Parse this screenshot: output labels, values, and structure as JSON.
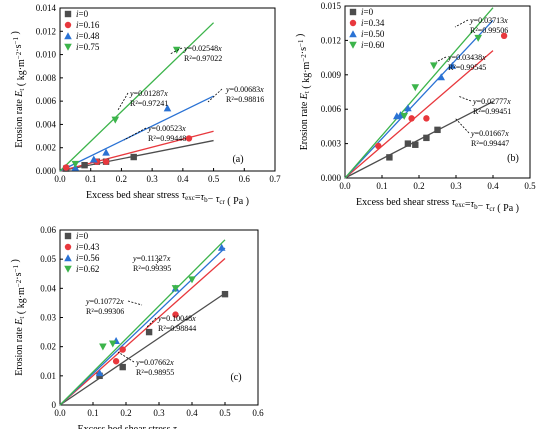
{
  "colors": {
    "series": [
      "#4d4d4d",
      "#e8383d",
      "#2a72d4",
      "#3cb44b"
    ],
    "axis": "#000000",
    "background": "#ffffff"
  },
  "chart_data": [
    {
      "type": "scatter",
      "panel_label": "(a)",
      "xlabel": "Excess bed shear stress τexc=τb−τcr ( Pa )",
      "ylabel": "Erosion rate Et ( kg·m−2·s−1 )",
      "xlim": [
        0,
        0.7
      ],
      "ylim": [
        0,
        0.014
      ],
      "xticks": [
        "0.0",
        "0.1",
        "0.2",
        "0.3",
        "0.4",
        "0.5",
        "0.6",
        "0.7"
      ],
      "yticks": [
        "0.000",
        "0.002",
        "0.004",
        "0.006",
        "0.008",
        "0.010",
        "0.012",
        "0.014"
      ],
      "legend_position": "top-left",
      "grid": false,
      "series": [
        {
          "name": "i=0",
          "marker": "square",
          "points": [
            [
              0.02,
              0.0002
            ],
            [
              0.08,
              0.0005
            ],
            [
              0.12,
              0.0008
            ],
            [
              0.15,
              0.0008
            ],
            [
              0.24,
              0.0012
            ]
          ],
          "fit_slope": 0.00523,
          "fit_xmax": 0.5,
          "equation": "y=0.00523x",
          "r2": "R²=0.99448"
        },
        {
          "name": "i=0.16",
          "marker": "circle",
          "points": [
            [
              0.02,
              0.0003
            ],
            [
              0.12,
              0.0008
            ],
            [
              0.15,
              0.0008
            ],
            [
              0.42,
              0.0028
            ]
          ],
          "fit_slope": 0.00683,
          "fit_xmax": 0.5,
          "equation": "y=0.00683x",
          "r2": "R²=0.98816"
        },
        {
          "name": "i=0.48",
          "marker": "triangle-up",
          "points": [
            [
              0.05,
              0.0003
            ],
            [
              0.11,
              0.001
            ],
            [
              0.15,
              0.0016
            ],
            [
              0.35,
              0.0054
            ]
          ],
          "fit_slope": 0.01287,
          "fit_xmax": 0.5,
          "equation": "y=0.01287x",
          "r2": "R²=0.97241"
        },
        {
          "name": "i=0.75",
          "marker": "triangle-down",
          "points": [
            [
              0.05,
              0.0006
            ],
            [
              0.18,
              0.0044
            ],
            [
              0.38,
              0.0104
            ]
          ],
          "fit_slope": 0.02548,
          "fit_xmax": 0.5,
          "equation": "y=0.02548x",
          "r2": "R²=0.97022"
        }
      ]
    },
    {
      "type": "scatter",
      "panel_label": "(b)",
      "xlabel": "Excess bed shear stress τexc=τb−τcr ( Pa )",
      "ylabel": "Erosion rate Et ( kg·m−2·s−1 )",
      "xlim": [
        0,
        0.5
      ],
      "ylim": [
        0,
        0.015
      ],
      "xticks": [
        "0.0",
        "0.1",
        "0.2",
        "0.3",
        "0.4",
        "0.5"
      ],
      "yticks": [
        "0.000",
        "0.003",
        "0.006",
        "0.009",
        "0.012",
        "0.015"
      ],
      "legend_position": "top-left",
      "grid": false,
      "series": [
        {
          "name": "i=0",
          "marker": "square",
          "points": [
            [
              0.12,
              0.0018
            ],
            [
              0.17,
              0.003
            ],
            [
              0.19,
              0.0029
            ],
            [
              0.22,
              0.0035
            ],
            [
              0.25,
              0.0042
            ]
          ],
          "fit_slope": 0.01667,
          "fit_xmax": 0.4,
          "equation": "y=0.01667x",
          "r2": "R²=0.99447"
        },
        {
          "name": "i=0.34",
          "marker": "circle",
          "points": [
            [
              0.09,
              0.0028
            ],
            [
              0.18,
              0.0052
            ],
            [
              0.22,
              0.0052
            ],
            [
              0.43,
              0.0124
            ]
          ],
          "fit_slope": 0.02777,
          "fit_xmax": 0.4,
          "equation": "y=0.02777x",
          "r2": "R²=0.99451"
        },
        {
          "name": "i=0.50",
          "marker": "triangle-up",
          "points": [
            [
              0.14,
              0.0054
            ],
            [
              0.15,
              0.0055
            ],
            [
              0.17,
              0.0061
            ],
            [
              0.26,
              0.0088
            ],
            [
              0.29,
              0.0098
            ]
          ],
          "fit_slope": 0.03438,
          "fit_xmax": 0.4,
          "equation": "y=0.03438x",
          "r2": "R²=0.99545"
        },
        {
          "name": "i=0.60",
          "marker": "triangle-down",
          "points": [
            [
              0.16,
              0.0054
            ],
            [
              0.19,
              0.0079
            ],
            [
              0.24,
              0.0098
            ],
            [
              0.36,
              0.0122
            ]
          ],
          "fit_slope": 0.03713,
          "fit_xmax": 0.4,
          "equation": "y=0.03713x",
          "r2": "R²=0.99506"
        }
      ]
    },
    {
      "type": "scatter",
      "panel_label": "(c)",
      "xlabel": "Excess bed shear stress τexc=τb−τcr ( Pa )",
      "ylabel": "Erosion rate Et ( kg·m−2·s−1 )",
      "xlim": [
        0,
        0.6
      ],
      "ylim": [
        0,
        0.06
      ],
      "xticks": [
        "0.0",
        "0.1",
        "0.2",
        "0.3",
        "0.4",
        "0.5",
        "0.6"
      ],
      "yticks": [
        "0",
        "0.01",
        "0.02",
        "0.03",
        "0.04",
        "0.05",
        "0.06"
      ],
      "legend_position": "top-left",
      "grid": false,
      "series": [
        {
          "name": "i=0",
          "marker": "square",
          "points": [
            [
              0.12,
              0.01
            ],
            [
              0.19,
              0.013
            ],
            [
              0.27,
              0.025
            ],
            [
              0.5,
              0.038
            ]
          ],
          "fit_slope": 0.07662,
          "fit_xmax": 0.5,
          "equation": "y=0.07662x",
          "r2": "R²=0.98955"
        },
        {
          "name": "i=0.43",
          "marker": "circle",
          "points": [
            [
              0.17,
              0.015
            ],
            [
              0.19,
              0.019
            ],
            [
              0.35,
              0.031
            ]
          ],
          "fit_slope": 0.10048,
          "fit_xmax": 0.5,
          "equation": "y=0.10048x",
          "r2": "R²=0.98844"
        },
        {
          "name": "i=0.56",
          "marker": "triangle-up",
          "points": [
            [
              0.12,
              0.011
            ],
            [
              0.17,
              0.022
            ],
            [
              0.35,
              0.04
            ],
            [
              0.49,
              0.054
            ]
          ],
          "fit_slope": 0.10772,
          "fit_xmax": 0.5,
          "equation": "y=0.10772x",
          "r2": "R²=0.99306"
        },
        {
          "name": "i=0.62",
          "marker": "triangle-down",
          "points": [
            [
              0.13,
              0.02
            ],
            [
              0.16,
              0.021
            ],
            [
              0.35,
              0.04
            ],
            [
              0.4,
              0.043
            ]
          ],
          "fit_slope": 0.11327,
          "fit_xmax": 0.5,
          "equation": "y=0.11327x",
          "r2": "R²=0.99395"
        }
      ]
    }
  ]
}
